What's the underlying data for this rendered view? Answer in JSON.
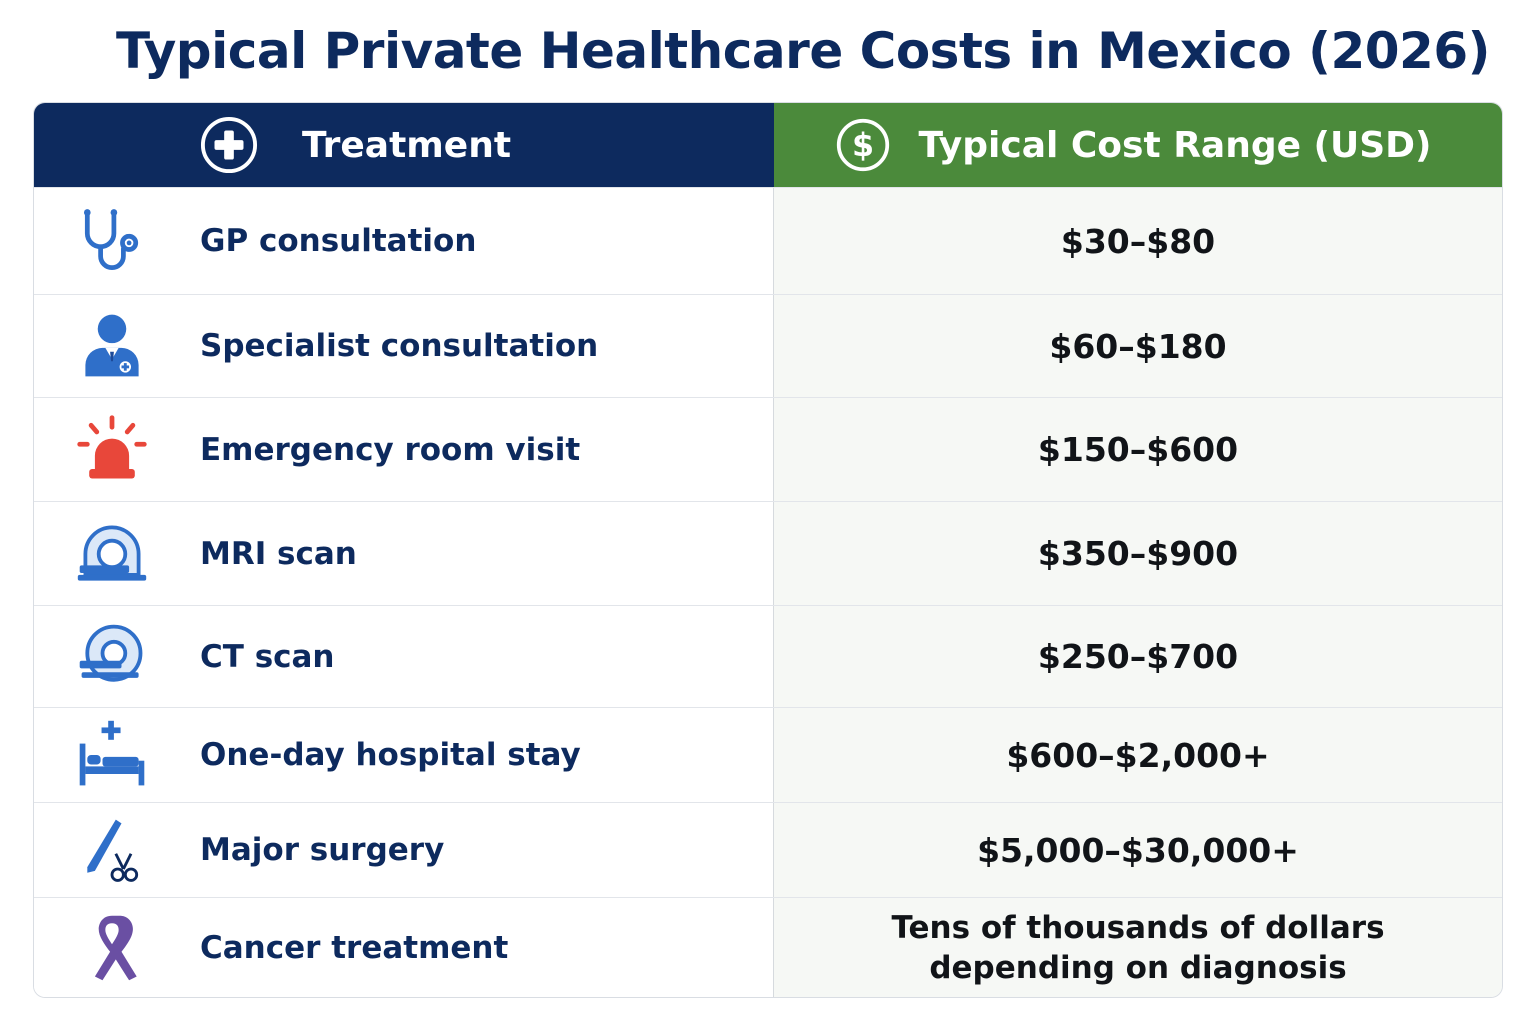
{
  "title": "Typical Private Healthcare Costs in Mexico (2026)",
  "header": {
    "treatment_label": "Treatment",
    "cost_label": "Typical Cost Range (USD)",
    "treatment_icon": "medical-cross-icon",
    "cost_icon": "dollar-icon"
  },
  "rows": [
    {
      "treatment": "GP consultation",
      "cost": "$30–$80",
      "icon": "stethoscope-icon"
    },
    {
      "treatment": "Specialist consultation",
      "cost": "$60–$180",
      "icon": "doctor-icon"
    },
    {
      "treatment": "Emergency room visit",
      "cost": "$150–$600",
      "icon": "emergency-siren-icon"
    },
    {
      "treatment": "MRI scan",
      "cost": "$350–$900",
      "icon": "mri-scanner-icon"
    },
    {
      "treatment": "CT scan",
      "cost": "$250–$700",
      "icon": "ct-scanner-icon"
    },
    {
      "treatment": "One-day hospital stay",
      "cost": "$600–$2,000+",
      "icon": "hospital-bed-icon"
    },
    {
      "treatment": "Major surgery",
      "cost": "$5,000–$30,000+",
      "icon": "scalpel-scissors-icon"
    },
    {
      "treatment": "Cancer treatment",
      "cost_line1": "Tens of thousands of dollars",
      "cost_line2": "depending on diagnosis",
      "icon": "awareness-ribbon-icon"
    }
  ],
  "colors": {
    "navy": "#0d2a5e",
    "green": "#4b8a3b",
    "icon_blue": "#2f6fc9",
    "siren_red": "#e8473a",
    "ribbon_purple": "#6a4fa3"
  }
}
